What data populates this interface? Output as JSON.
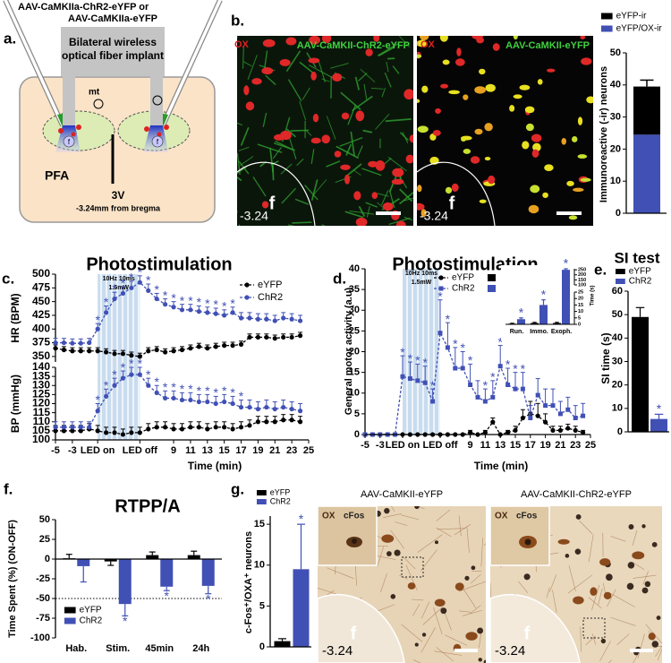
{
  "panel_labels": {
    "a": "a.",
    "b": "b.",
    "c": "c.",
    "d": "d.",
    "e": "e.",
    "f": "f.",
    "g": "g."
  },
  "diagram": {
    "virus_line1": "AAV-CaMKIIa-ChR2-eYFP or",
    "virus_line2": "AAV-CaMKIIa-eYFP",
    "implant_line1": "Bilateral wireless",
    "implant_line2": "optical fiber implant",
    "mt": "mt",
    "pfa": "PFA",
    "ventricle": "3V",
    "coordinate": "-3.24mm from bregma",
    "fornix": "f"
  },
  "micrographs": [
    {
      "stain": "OX",
      "virus": "AAV-CaMKII-ChR2-eYFP",
      "fornix": "f",
      "coordinate": "-3.24"
    },
    {
      "stain": "OX",
      "virus": "AAV-CaMKII-eYFP",
      "fornix": "f",
      "coordinate": "-3.24"
    }
  ],
  "histology": [
    {
      "title": "AAV-CaMKII-eYFP",
      "stain": "OX",
      "marker": "cFos",
      "fornix": "f",
      "coordinate": "-3.24"
    },
    {
      "title": "AAV-CaMKII-ChR2-eYFP",
      "stain": "OX",
      "marker": "cFos",
      "fornix": "f",
      "coordinate": "-3.24"
    }
  ],
  "chart_data": [
    {
      "type": "bar",
      "stacked": true,
      "ylabel": "Immunoreactive (-ir) neurons",
      "categories": [
        null
      ],
      "ylim": [
        0,
        50
      ],
      "yticks": [
        0,
        10,
        20,
        30,
        40,
        50
      ],
      "series": [
        {
          "name": "eYFP/OX-ir",
          "color": "#4050b5",
          "values": [
            24.5
          ],
          "errors": [
            1
          ]
        },
        {
          "name": "eYFP-ir",
          "color": "#000000",
          "values": [
            15
          ],
          "errors": [
            2
          ]
        }
      ]
    },
    {
      "type": "line",
      "title": "Photostimulation",
      "xlabel": "Time (min)",
      "stim_label": [
        "10Hz 10ms",
        "1.5mW"
      ],
      "x": [
        -5,
        -4,
        -3,
        -2,
        -1,
        0,
        1,
        2,
        3,
        4,
        5,
        6,
        7,
        8,
        9,
        10,
        11,
        12,
        13,
        14,
        15,
        16,
        17,
        18,
        19,
        20,
        21,
        22,
        23,
        24
      ],
      "xlim": [
        -5,
        25
      ],
      "xticks": [
        -5,
        -3,
        {
          "value": 0,
          "label": "LED on"
        },
        {
          "value": 5,
          "label": "LED off"
        },
        9,
        11,
        13,
        15,
        17,
        19,
        21,
        23,
        25
      ],
      "subplots": [
        {
          "ylabel": "HR (BPM)",
          "ylim": [
            340,
            500
          ],
          "yticks": [
            350,
            375,
            400,
            425,
            450,
            475,
            500
          ],
          "series": [
            {
              "name": "eYFP",
              "color": "#000000",
              "marker": "circle",
              "values": [
                365,
                362,
                360,
                360,
                360,
                360,
                358,
                355,
                355,
                352,
                350,
                360,
                362,
                358,
                360,
                362,
                365,
                368,
                365,
                368,
                370,
                370,
                372,
                385,
                385,
                385,
                383,
                385,
                385,
                388
              ],
              "errors": [
                6,
                6,
                6,
                6,
                6,
                6,
                6,
                6,
                6,
                6,
                6,
                6,
                6,
                6,
                6,
                6,
                6,
                6,
                6,
                6,
                6,
                6,
                6,
                6,
                6,
                6,
                6,
                6,
                6,
                6
              ]
            },
            {
              "name": "ChR2",
              "color": "#4050b5",
              "marker": "circle",
              "values": [
                375,
                375,
                374,
                374,
                375,
                400,
                430,
                455,
                465,
                475,
                485,
                470,
                455,
                445,
                440,
                435,
                435,
                432,
                430,
                428,
                425,
                430,
                420,
                420,
                418,
                418,
                415,
                420,
                418,
                415
              ],
              "errors": [
                8,
                8,
                8,
                8,
                8,
                10,
                12,
                12,
                12,
                12,
                12,
                12,
                10,
                10,
                10,
                10,
                10,
                10,
                10,
                10,
                10,
                10,
                10,
                10,
                10,
                10,
                10,
                10,
                10,
                10
              ],
              "stars": {
                "label": "*",
                "indices": [
                  5,
                  6,
                  7,
                  8,
                  9,
                  10,
                  11,
                  12,
                  13,
                  14,
                  15,
                  16,
                  17,
                  18,
                  19,
                  20,
                  21
                ]
              }
            }
          ]
        },
        {
          "ylabel": "BP (mmHg)",
          "ylim": [
            100,
            140
          ],
          "yticks": [
            100,
            105,
            110,
            115,
            120,
            125,
            130,
            135,
            140
          ],
          "series": [
            {
              "color": "#000000",
              "marker": "circle",
              "values": [
                105,
                105,
                105,
                105,
                106,
                105,
                104,
                104,
                103,
                104,
                104,
                106,
                107,
                107,
                106,
                106,
                107,
                107,
                106,
                107,
                107,
                106,
                107,
                108,
                110,
                110,
                110,
                111,
                111,
                110
              ],
              "errors": [
                3,
                3,
                3,
                3,
                3,
                3,
                3,
                3,
                3,
                3,
                3,
                3,
                3,
                3,
                3,
                3,
                3,
                3,
                3,
                3,
                3,
                3,
                3,
                3,
                3,
                3,
                3,
                3,
                3,
                3
              ]
            },
            {
              "color": "#4050b5",
              "marker": "circle",
              "values": [
                107,
                107,
                107,
                107,
                107,
                116,
                124,
                130,
                134,
                136,
                136,
                130,
                126,
                123,
                123,
                122,
                122,
                121,
                121,
                120,
                121,
                120,
                118,
                118,
                117,
                118,
                117,
                118,
                117,
                116
              ],
              "errors": [
                3,
                3,
                3,
                3,
                3,
                4,
                4,
                4,
                4,
                4,
                4,
                4,
                4,
                4,
                4,
                4,
                4,
                4,
                4,
                4,
                4,
                4,
                4,
                4,
                4,
                4,
                4,
                4,
                4,
                4
              ],
              "stars": {
                "label": "*",
                "indices": [
                  5,
                  6,
                  7,
                  8,
                  9,
                  10,
                  11,
                  12,
                  13,
                  14,
                  15,
                  16,
                  17,
                  18,
                  19,
                  20,
                  21,
                  22
                ]
              }
            }
          ]
        }
      ]
    },
    {
      "type": "line",
      "title": "Photostimulation",
      "xlabel": "Time (min)",
      "ylabel": "General motor activity (a.u)",
      "stim_label": [
        "10Hz 10ms",
        "1.5mW"
      ],
      "x": [
        -5,
        -4,
        -3,
        -2,
        -1,
        0,
        1,
        2,
        3,
        4,
        5,
        6,
        7,
        8,
        9,
        10,
        11,
        12,
        13,
        14,
        15,
        16,
        17,
        18,
        19,
        20,
        21,
        22,
        23,
        24
      ],
      "xlim": [
        -5,
        25
      ],
      "xticks": [
        -5,
        -3,
        {
          "value": 0,
          "label": "LED on"
        },
        {
          "value": 5,
          "label": "LED off"
        },
        9,
        11,
        13,
        15,
        17,
        19,
        21,
        23,
        25
      ],
      "ylim": [
        0,
        40
      ],
      "yticks": [
        0,
        5,
        10,
        15,
        20,
        25,
        30,
        35,
        40
      ],
      "series": [
        {
          "name": "eYFP",
          "color": "#000000",
          "marker": "circle",
          "values": [
            0,
            0,
            0,
            0,
            0,
            0,
            0,
            0,
            0,
            0,
            0,
            0,
            0,
            0,
            0.5,
            0,
            0.5,
            3,
            0,
            0.5,
            1,
            4,
            5,
            4.5,
            3,
            1,
            1,
            1.5,
            1,
            0.5
          ],
          "errors": [
            0,
            0,
            0,
            0,
            0,
            0,
            0,
            0,
            0,
            0,
            0,
            0,
            0,
            0,
            0.5,
            0,
            0.5,
            1,
            0,
            0.5,
            1,
            2,
            3,
            3,
            2,
            1,
            1,
            1,
            1,
            0.5
          ]
        },
        {
          "name": "ChR2",
          "color": "#4050b5",
          "marker": "square",
          "values": [
            0,
            0,
            0,
            0,
            0,
            14,
            13.5,
            13,
            12.5,
            8,
            24.5,
            21,
            16,
            16,
            12,
            9,
            8,
            9,
            16.5,
            12,
            11,
            11,
            4,
            9.5,
            7,
            7,
            5,
            6,
            4,
            4.5
          ],
          "errors": [
            0,
            0,
            0,
            0,
            0,
            5,
            4,
            4,
            4,
            3,
            8,
            6,
            5,
            4,
            5,
            4,
            3,
            4,
            5,
            4,
            4,
            4,
            3,
            4,
            4,
            4,
            3,
            3,
            3,
            3
          ],
          "stars": {
            "label": "*",
            "indices": [
              5,
              6,
              7,
              8,
              9,
              10,
              11,
              12,
              13,
              14,
              16,
              17,
              18,
              19,
              20,
              21
            ]
          }
        }
      ],
      "inset": {
        "type": "bar",
        "ylabel": "Time (s)",
        "categories": [
          "Run.",
          "Immo.",
          "Exoph."
        ],
        "ylim": [
          0,
          260
        ],
        "ybreak": [
          25,
          100
        ],
        "yticks": [
          0,
          5,
          10,
          15,
          20,
          25,
          100,
          150,
          200,
          250
        ],
        "series": [
          {
            "color": "#000000",
            "values": [
              0.5,
              1,
              1
            ],
            "errors": [
              0.3,
              0.5,
              0.5
            ]
          },
          {
            "color": "#4050b5",
            "values": [
              4,
              15,
              250
            ],
            "errors": [
              1,
              4,
              10
            ],
            "stars": {
              "label": "*",
              "indices": [
                0,
                1,
                2
              ]
            }
          }
        ]
      }
    },
    {
      "type": "bar",
      "title": "SI test",
      "ylabel": "SI time (s)",
      "categories": [
        null
      ],
      "ylim": [
        0,
        60
      ],
      "yticks": [
        0,
        10,
        20,
        30,
        40,
        50,
        60
      ],
      "series": [
        {
          "name": "eYFP",
          "color": "#000000",
          "values": [
            49
          ],
          "errors": [
            4
          ]
        },
        {
          "name": "ChR2",
          "color": "#4050b5",
          "values": [
            5.5
          ],
          "errors": [
            2
          ],
          "stars": {
            "label": "*",
            "indices": [
              0
            ]
          }
        }
      ]
    },
    {
      "type": "bar",
      "title": "RTPP/A",
      "ylabel": "Time Spent (%) (ON-OFF)",
      "categories": [
        "Hab.",
        "Stim.",
        "45min",
        "24h"
      ],
      "reference_line": -50,
      "ylim": [
        -100,
        50
      ],
      "yticks": [
        50,
        25,
        0,
        -25,
        -50,
        -75,
        -100
      ],
      "series": [
        {
          "name": "eYFP",
          "color": "#000000",
          "values": [
            1,
            -3,
            5,
            5
          ],
          "errors": [
            5,
            5,
            4,
            5
          ]
        },
        {
          "name": "ChR2",
          "color": "#4050b5",
          "values": [
            -9,
            -57,
            -35,
            -34
          ],
          "errors": [
            20,
            15,
            5,
            10
          ],
          "stars": {
            "label": "*",
            "indices": [
              1,
              2,
              3
            ]
          }
        }
      ]
    },
    {
      "type": "bar",
      "ylabel": "c-Fos⁺/OXA⁺ neurons",
      "categories": [
        null
      ],
      "ylim": [
        0,
        16
      ],
      "yticks": [
        0,
        5,
        10,
        15
      ],
      "series": [
        {
          "name": "eYFP",
          "color": "#000000",
          "values": [
            0.7
          ],
          "errors": [
            0.3
          ]
        },
        {
          "name": "ChR2",
          "color": "#4050b5",
          "values": [
            9.5
          ],
          "errors": [
            5.5
          ],
          "stars": {
            "label": "*",
            "indices": [
              0
            ]
          }
        }
      ]
    }
  ]
}
